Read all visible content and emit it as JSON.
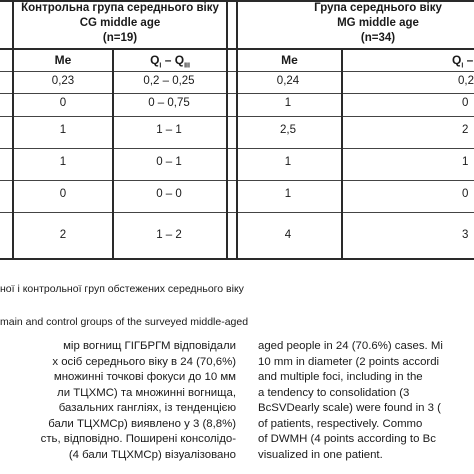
{
  "table": {
    "group_cg": {
      "line1": "Контрольна група середнього віку",
      "line2": "CG middle age",
      "line3": "(n=19)"
    },
    "group_mg": {
      "line1": "Група середнього віку",
      "line2": "MG middle age",
      "line3": "(n=34)"
    },
    "subheaders": {
      "cg_me": "Me",
      "cg_q_base": "Q",
      "cg_q_sub1": "I",
      "cg_q_dash": " – Q",
      "cg_q_sub2": "III",
      "mg_me": "Me",
      "mg_q_base": "Q",
      "mg_q_sub1": "I",
      "mg_q_tail": " –"
    },
    "rows": [
      {
        "cg_me": "0,23",
        "cg_q": "0,2 – 0,25",
        "mg_me": "0,24",
        "mg_q": "0,2"
      },
      {
        "cg_me": "0",
        "cg_q": "0 – 0,75",
        "mg_me": "1",
        "mg_q": "0"
      },
      {
        "cg_me": "1",
        "cg_q": "1 – 1",
        "mg_me": "2,5",
        "mg_q": "2"
      },
      {
        "cg_me": "1",
        "cg_q": "0 – 1",
        "mg_me": "1",
        "mg_q": "1"
      },
      {
        "cg_me": "0",
        "cg_q": "0 – 0",
        "mg_me": "1",
        "mg_q": "0"
      },
      {
        "cg_me": "2",
        "cg_q": "1 – 2",
        "mg_me": "4",
        "mg_q": "3"
      }
    ]
  },
  "captions": {
    "ukrainian": "ної і контрольної груп обстежених середнього віку",
    "english": "main and control groups of the surveyed middle-aged"
  },
  "left_column": [
    "мір вогнищ ГІГБРГМ відповідали",
    "х осіб середнього віку в 24 (70,6%)",
    "множинні точкові фокуси до 10 мм",
    "ли ТЦХМС) та множинні вогнища,",
    "базальних гангліях, із тенденцією",
    "бали ТЦХМСр) виявлено у 3 (8,8%)",
    "сть, відповідно. Поширені консолідо-",
    "(4 бали ТЦХМСр) візуалізовано"
  ],
  "right_column": [
    "aged people in 24 (70.6%) cases. Mi",
    "10 mm in diameter (2 points accordi",
    "and multiple foci, including in the",
    "a tendency to consolidation (3",
    "BcSVDearly scale) were found in 3 (",
    "of patients, respectively. Commo",
    "of DWMH (4 points according to Bc",
    "visualized in one patient."
  ]
}
